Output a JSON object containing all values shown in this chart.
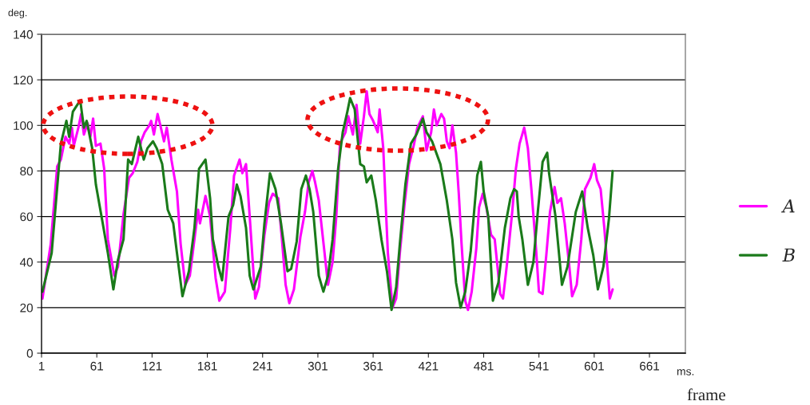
{
  "chart_data": {
    "type": "line",
    "xlabel": "frame",
    "ylabel": "deg.",
    "annotations": [
      "ms."
    ],
    "xlim": [
      1,
      700
    ],
    "xticks": [
      1,
      61,
      121,
      181,
      241,
      301,
      361,
      421,
      481,
      541,
      601,
      661
    ],
    "ylim": [
      0,
      140
    ],
    "yticks": [
      0,
      20,
      40,
      60,
      80,
      100,
      120,
      140
    ],
    "grid": "y",
    "legend": "right",
    "marker": "none",
    "line_style": "solid",
    "series": [
      {
        "name": "A",
        "color": "#ff00ff",
        "x": [
          2,
          11,
          18,
          22,
          27,
          31,
          34,
          36,
          41,
          44,
          47,
          51,
          54,
          57,
          60,
          65,
          69,
          73,
          80,
          84,
          90,
          96,
          100,
          105,
          109,
          113,
          118,
          120,
          123,
          127,
          130,
          134,
          137,
          142,
          148,
          152,
          157,
          162,
          167,
          171,
          173,
          179,
          184,
          190,
          194,
          200,
          206,
          210,
          216,
          219,
          223,
          227,
          233,
          237,
          243,
          248,
          252,
          258,
          262,
          266,
          270,
          275,
          282,
          287,
          291,
          295,
          298,
          302,
          308,
          312,
          317,
          321,
          325,
          331,
          334,
          339,
          343,
          347,
          351,
          354,
          357,
          361,
          366,
          368,
          372,
          374,
          377,
          382,
          386,
          390,
          395,
          400,
          405,
          409,
          415,
          419,
          424,
          427,
          430,
          435,
          438,
          441,
          444,
          447,
          451,
          454,
          457,
          461,
          464,
          468,
          473,
          476,
          480,
          484,
          489,
          493,
          496,
          499,
          502,
          506,
          512,
          516,
          520,
          525,
          529,
          533,
          538,
          541,
          545,
          549,
          553,
          558,
          561,
          565,
          569,
          574,
          577,
          582,
          587,
          591,
          597,
          601,
          604,
          608,
          612,
          617,
          618,
          621
        ],
        "values": [
          24,
          48,
          82,
          85,
          95,
          92,
          99,
          91,
          99,
          105,
          96,
          101,
          95,
          103,
          91,
          92,
          81,
          50,
          34,
          38,
          61,
          77,
          79,
          84,
          93,
          97,
          100,
          102,
          96,
          105,
          100,
          93,
          99,
          85,
          71,
          48,
          30,
          34,
          50,
          63,
          57,
          69,
          60,
          33,
          23,
          27,
          55,
          78,
          85,
          79,
          83,
          60,
          24,
          29,
          52,
          66,
          70,
          68,
          50,
          30,
          22,
          28,
          51,
          62,
          75,
          80,
          75,
          67,
          45,
          30,
          40,
          60,
          92,
          97,
          104,
          96,
          109,
          92,
          104,
          115,
          105,
          102,
          97,
          107,
          90,
          71,
          44,
          20,
          24,
          44,
          65,
          83,
          91,
          99,
          104,
          89,
          97,
          107,
          100,
          105,
          103,
          93,
          90,
          100,
          88,
          70,
          48,
          23,
          19,
          27,
          46,
          64,
          70,
          64,
          52,
          50,
          38,
          26,
          24,
          38,
          62,
          81,
          92,
          99,
          90,
          71,
          45,
          27,
          26,
          43,
          62,
          73,
          66,
          68,
          57,
          38,
          25,
          30,
          50,
          72,
          77,
          83,
          76,
          72,
          55,
          29,
          24,
          28
        ]
      },
      {
        "name": "B",
        "color": "#1a7a1a",
        "x": [
          2,
          12,
          22,
          28,
          31,
          35,
          43,
          47,
          50,
          56,
          60,
          67,
          73,
          79,
          84,
          90,
          95,
          99,
          106,
          112,
          116,
          122,
          126,
          132,
          138,
          144,
          148,
          154,
          161,
          167,
          172,
          179,
          184,
          187,
          193,
          197,
          204,
          209,
          213,
          217,
          223,
          227,
          231,
          239,
          243,
          249,
          255,
          261,
          268,
          272,
          278,
          283,
          288,
          292,
          296,
          302,
          307,
          312,
          317,
          323,
          328,
          333,
          336,
          341,
          347,
          351,
          354,
          359,
          364,
          370,
          376,
          381,
          386,
          390,
          396,
          402,
          408,
          415,
          419,
          425,
          434,
          441,
          447,
          451,
          456,
          461,
          467,
          474,
          478,
          481,
          486,
          489,
          491,
          497,
          504,
          510,
          514,
          517,
          519,
          523,
          529,
          535,
          540,
          545,
          550,
          552,
          559,
          566,
          572,
          581,
          588,
          594,
          600,
          605,
          611,
          617,
          621
        ],
        "values": [
          27,
          44,
          92,
          102,
          95,
          106,
          111,
          99,
          102,
          90,
          74,
          58,
          44,
          28,
          41,
          50,
          85,
          83,
          95,
          85,
          90,
          93,
          90,
          83,
          63,
          57,
          44,
          25,
          36,
          55,
          81,
          85,
          68,
          50,
          38,
          32,
          60,
          65,
          74,
          69,
          55,
          34,
          28,
          38,
          57,
          79,
          72,
          57,
          36,
          37,
          49,
          72,
          78,
          72,
          62,
          34,
          27,
          34,
          50,
          81,
          97,
          106,
          112,
          107,
          83,
          82,
          75,
          78,
          67,
          50,
          36,
          19,
          29,
          48,
          74,
          92,
          96,
          103,
          97,
          93,
          83,
          67,
          50,
          31,
          20,
          27,
          45,
          78,
          84,
          71,
          60,
          38,
          23,
          31,
          55,
          68,
          72,
          71,
          60,
          50,
          30,
          40,
          63,
          84,
          88,
          79,
          60,
          30,
          38,
          62,
          71,
          55,
          43,
          28,
          38,
          59,
          80
        ]
      }
    ]
  }
}
